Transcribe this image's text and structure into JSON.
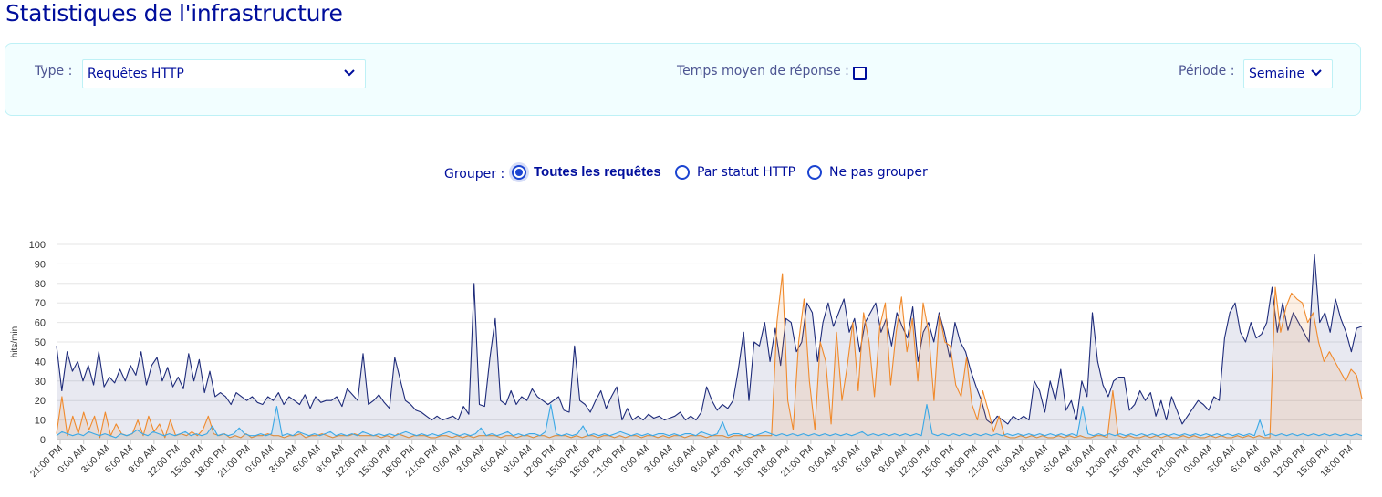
{
  "page": {
    "title": "Statistiques de l'infrastructure"
  },
  "filters": {
    "type_label": "Type :",
    "type_value": "Requêtes HTTP",
    "avg_response_label": "Temps moyen de réponse :",
    "avg_response_checked": false,
    "period_label": "Période :",
    "period_value": "Semaine"
  },
  "grouping": {
    "label": "Grouper :",
    "options": [
      {
        "label": "Toutes les requêtes",
        "selected": true
      },
      {
        "label": "Par statut HTTP",
        "selected": false
      },
      {
        "label": "Ne pas grouper",
        "selected": false
      }
    ]
  },
  "colors": {
    "accent": "#000e9c",
    "radio": "#1b44d1",
    "series_total": "#1e2b7a",
    "series_orange": "#f08a2c",
    "series_light": "#3aa8e6",
    "panel_bg": "#f2feff"
  },
  "chart_data": {
    "type": "area",
    "ylabel": "hits/min",
    "xlabel": "",
    "ylim": [
      0,
      100
    ],
    "yticks": [
      0,
      10,
      20,
      30,
      40,
      50,
      60,
      70,
      80,
      90,
      100
    ],
    "grid": true,
    "legend": "none",
    "x_tick_labels": [
      "21:00 PM",
      "0:00 AM",
      "3:00 AM",
      "6:00 AM",
      "9:00 AM",
      "12:00 PM",
      "15:00 PM",
      "18:00 PM",
      "21:00 PM",
      "0:00 AM",
      "3:00 AM",
      "6:00 AM",
      "9:00 AM",
      "12:00 PM",
      "15:00 PM",
      "18:00 PM",
      "21:00 PM",
      "0:00 AM",
      "3:00 AM",
      "6:00 AM",
      "9:00 AM",
      "12:00 PM",
      "15:00 PM",
      "18:00 PM",
      "21:00 PM",
      "0:00 AM",
      "3:00 AM",
      "6:00 AM",
      "9:00 AM",
      "12:00 PM",
      "15:00 PM",
      "18:00 PM",
      "21:00 PM",
      "0:00 AM",
      "3:00 AM",
      "6:00 AM",
      "9:00 AM",
      "12:00 PM",
      "15:00 PM",
      "18:00 PM",
      "21:00 PM",
      "0:00 AM",
      "3:00 AM",
      "6:00 AM",
      "9:00 AM",
      "12:00 PM",
      "15:00 PM",
      "18:00 PM",
      "21:00 PM",
      "0:00 AM",
      "3:00 AM",
      "6:00 AM",
      "9:00 AM",
      "12:00 PM",
      "15:00 PM",
      "18:00 PM"
    ],
    "series": [
      {
        "color": "#1e2b7a",
        "values": [
          48,
          25,
          45,
          35,
          40,
          30,
          38,
          28,
          45,
          27,
          32,
          29,
          36,
          30,
          38,
          33,
          45,
          28,
          38,
          42,
          30,
          37,
          27,
          32,
          26,
          44,
          30,
          41,
          24,
          35,
          22,
          24,
          22,
          18,
          24,
          22,
          20,
          22,
          19,
          18,
          22,
          20,
          24,
          18,
          22,
          20,
          18,
          23,
          16,
          22,
          19,
          20,
          20,
          22,
          17,
          26,
          23,
          20,
          44,
          18,
          20,
          23,
          19,
          16,
          42,
          31,
          20,
          18,
          15,
          14,
          12,
          10,
          12,
          10,
          11,
          12,
          10,
          17,
          13,
          80,
          18,
          17,
          42,
          62,
          20,
          18,
          25,
          18,
          22,
          20,
          26,
          22,
          20,
          18,
          20,
          22,
          15,
          14,
          48,
          20,
          18,
          14,
          20,
          25,
          16,
          22,
          27,
          10,
          16,
          10,
          12,
          10,
          13,
          11,
          12,
          10,
          11,
          12,
          14,
          10,
          12,
          10,
          14,
          27,
          20,
          15,
          18,
          16,
          20,
          36,
          55,
          20,
          50,
          48,
          60,
          40,
          57,
          38,
          62,
          60,
          45,
          50,
          70,
          65,
          40,
          60,
          70,
          58,
          65,
          72,
          55,
          62,
          45,
          60,
          65,
          70,
          55,
          62,
          48,
          65,
          58,
          52,
          68,
          40,
          55,
          60,
          50,
          65,
          55,
          42,
          60,
          50,
          45,
          35,
          27,
          20,
          10,
          8,
          12,
          10,
          8,
          12,
          10,
          12,
          10,
          30,
          25,
          14,
          30,
          20,
          36,
          15,
          20,
          10,
          30,
          22,
          65,
          40,
          28,
          22,
          30,
          32,
          32,
          15,
          18,
          25,
          20,
          24,
          12,
          20,
          10,
          22,
          15,
          8,
          12,
          16,
          20,
          18,
          15,
          22,
          20,
          52,
          65,
          70,
          55,
          50,
          60,
          52,
          54,
          60,
          78,
          55,
          70,
          56,
          65,
          60,
          55,
          50,
          95,
          60,
          65,
          55,
          72,
          62,
          55,
          45,
          57,
          58
        ]
      },
      {
        "color": "#f08a2c",
        "values": [
          3,
          22,
          2,
          12,
          3,
          14,
          5,
          12,
          1,
          14,
          2,
          8,
          3,
          2,
          3,
          10,
          2,
          12,
          4,
          8,
          1,
          10,
          2,
          3,
          2,
          4,
          2,
          5,
          12,
          3,
          2,
          3,
          1,
          2,
          1,
          3,
          1,
          2,
          2,
          3,
          2,
          2,
          1,
          2,
          2,
          3,
          1,
          2,
          2,
          3,
          2,
          1,
          2,
          2,
          2,
          3,
          2,
          2,
          2,
          2,
          1,
          2,
          1,
          3,
          2,
          1,
          2,
          2,
          2,
          1,
          1,
          2,
          2,
          1,
          2,
          1,
          2,
          1,
          2,
          2,
          2,
          2,
          1,
          2,
          2,
          1,
          2,
          2,
          1,
          2,
          2,
          1,
          2,
          2,
          2,
          1,
          2,
          1,
          2,
          2,
          1,
          2,
          2,
          1,
          2,
          1,
          2,
          2,
          1,
          2,
          2,
          1,
          2,
          1,
          2,
          2,
          1,
          2,
          2,
          2,
          1,
          2,
          2,
          2,
          1,
          2,
          2,
          2,
          1,
          2,
          2,
          2,
          2,
          60,
          85,
          20,
          5,
          50,
          72,
          30,
          5,
          50,
          40,
          8,
          55,
          20,
          38,
          60,
          25,
          65,
          50,
          22,
          58,
          70,
          28,
          55,
          73,
          45,
          62,
          30,
          70,
          55,
          20,
          64,
          50,
          48,
          28,
          22,
          42,
          18,
          10,
          25,
          15,
          4,
          12,
          2,
          1,
          1,
          2,
          1,
          2,
          1,
          2,
          1,
          1,
          2,
          1,
          2,
          1,
          2,
          1,
          1,
          2,
          2,
          1,
          25,
          2,
          1,
          2,
          1,
          1,
          2,
          1,
          2,
          1,
          2,
          1,
          1,
          2,
          1,
          2,
          1,
          1,
          2,
          1,
          2,
          1,
          1,
          2,
          1,
          2,
          1,
          2,
          1,
          1,
          78,
          55,
          68,
          75,
          72,
          70,
          60,
          65,
          50,
          40,
          45,
          40,
          35,
          30,
          36,
          33,
          21
        ]
      },
      {
        "color": "#3aa8e6",
        "values": [
          2,
          4,
          3,
          2,
          3,
          2,
          4,
          3,
          2,
          3,
          2,
          1,
          3,
          2,
          3,
          5,
          3,
          2,
          4,
          3,
          2,
          3,
          2,
          3,
          4,
          2,
          3,
          2,
          3,
          7,
          2,
          3,
          2,
          3,
          6,
          3,
          2,
          2,
          3,
          2,
          3,
          17,
          2,
          3,
          2,
          4,
          3,
          2,
          3,
          2,
          3,
          4,
          2,
          3,
          2,
          3,
          2,
          4,
          3,
          2,
          3,
          2,
          3,
          2,
          3,
          4,
          3,
          2,
          3,
          2,
          3,
          2,
          3,
          4,
          3,
          2,
          3,
          2,
          3,
          6,
          2,
          3,
          2,
          3,
          4,
          2,
          3,
          2,
          3,
          3,
          2,
          4,
          18,
          3,
          2,
          3,
          2,
          3,
          7,
          2,
          3,
          2,
          3,
          2,
          3,
          4,
          3,
          2,
          3,
          2,
          3,
          2,
          3,
          3,
          2,
          3,
          2,
          3,
          3,
          2,
          4,
          3,
          2,
          3,
          9,
          2,
          3,
          3,
          2,
          3,
          2,
          3,
          4,
          3,
          2,
          3,
          2,
          3,
          2,
          3,
          2,
          3,
          2,
          3,
          2,
          3,
          2,
          3,
          2,
          3,
          4,
          2,
          3,
          2,
          3,
          2,
          3,
          2,
          3,
          2,
          3,
          2,
          18,
          3,
          2,
          3,
          2,
          3,
          2,
          3,
          2,
          3,
          2,
          3,
          2,
          3,
          2,
          3,
          2,
          3,
          2,
          3,
          2,
          3,
          2,
          3,
          2,
          3,
          2,
          3,
          2,
          17,
          3,
          2,
          3,
          2,
          3,
          2,
          3,
          2,
          3,
          2,
          3,
          2,
          3,
          2,
          3,
          2,
          3,
          2,
          3,
          2,
          3,
          2,
          3,
          2,
          3,
          2,
          3,
          2,
          3,
          2,
          3,
          2,
          10,
          2,
          3,
          2,
          3,
          2,
          3,
          2,
          3,
          2,
          3,
          2,
          3,
          2,
          3,
          2,
          3,
          2,
          3,
          2
        ]
      }
    ]
  }
}
